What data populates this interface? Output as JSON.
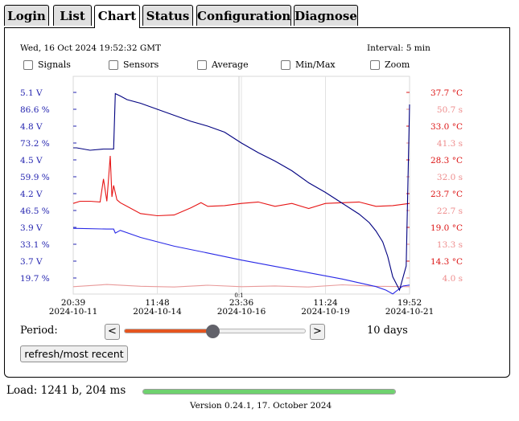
{
  "tabs": [
    {
      "label": "Login",
      "active": false
    },
    {
      "label": "List",
      "active": false
    },
    {
      "label": "Chart",
      "active": true
    },
    {
      "label": "Status",
      "active": false
    },
    {
      "label": "Configuration",
      "active": false
    },
    {
      "label": "Diagnose",
      "active": false
    }
  ],
  "header": {
    "datetime": "Wed, 16 Oct 2024 19:52:32 GMT",
    "interval": "Interval: 5 min"
  },
  "options": [
    {
      "label": "Signals",
      "checked": false
    },
    {
      "label": "Sensors",
      "checked": false
    },
    {
      "label": "Average",
      "checked": false
    },
    {
      "label": "Min/Max",
      "checked": false
    },
    {
      "label": "Zoom",
      "checked": false
    }
  ],
  "chart_data": {
    "type": "line",
    "left_axis_labels": [
      "5.1 V",
      "86.6 %",
      "4.8 V",
      "73.2 %",
      "4.5 V",
      "59.9 %",
      "4.2 V",
      "46.5 %",
      "3.9 V",
      "33.1 %",
      "3.7 V",
      "19.7 %"
    ],
    "right_axis_labels_a": [
      "37.7 °C",
      "33.0 °C",
      "28.3 °C",
      "23.7 °C",
      "19.0 °C",
      "14.3 °C"
    ],
    "right_axis_labels_b": [
      "50.7 s",
      "41.3 s",
      "32.0 s",
      "22.7 s",
      "13.3 s",
      "4.0 s"
    ],
    "x_ticks": [
      {
        "time": "20:39",
        "date": "2024-10-11"
      },
      {
        "time": "11:48",
        "date": "2024-10-14"
      },
      {
        "time": "23:36",
        "date": "2024-10-16"
      },
      {
        "time": "11:24",
        "date": "2024-10-19"
      },
      {
        "time": "19:52",
        "date": "2024-10-21"
      }
    ],
    "marker_label": "0:1",
    "colors": {
      "voltage": "#000080",
      "percent": "#2828e6",
      "temperature": "#e61414",
      "seconds": "#e89a9a"
    },
    "series": [
      {
        "values_note": "Battery voltage (dark blue), read in V on the left scale",
        "key": "voltage",
        "t": [
          0,
          0.01,
          0.05,
          0.09,
          0.12,
          0.125,
          0.14,
          0.16,
          0.2,
          0.25,
          0.3,
          0.35,
          0.4,
          0.45,
          0.5,
          0.55,
          0.6,
          0.65,
          0.7,
          0.75,
          0.8,
          0.85,
          0.88,
          0.9,
          0.92,
          0.935,
          0.95,
          0.97,
          0.99,
          1.0
        ],
        "v": [
          4.64,
          4.64,
          4.62,
          4.63,
          4.63,
          5.09,
          5.07,
          5.04,
          5.01,
          4.96,
          4.91,
          4.86,
          4.82,
          4.77,
          4.68,
          4.6,
          4.53,
          4.45,
          4.35,
          4.27,
          4.18,
          4.09,
          4.02,
          3.95,
          3.86,
          3.74,
          3.57,
          3.46,
          3.66,
          5.0
        ]
      },
      {
        "key": "percent",
        "t": [
          0,
          0.1,
          0.12,
          0.125,
          0.14,
          0.2,
          0.3,
          0.4,
          0.5,
          0.6,
          0.7,
          0.8,
          0.9,
          0.93,
          0.95,
          0.98,
          1.0
        ],
        "v": [
          39.4,
          39.1,
          39.1,
          37.5,
          38.6,
          35.8,
          32.3,
          29.6,
          26.8,
          24.3,
          21.8,
          19.3,
          16.3,
          14.9,
          13.4,
          16.5,
          16.9
        ]
      },
      {
        "key": "temperature",
        "t": [
          0,
          0.02,
          0.05,
          0.08,
          0.09,
          0.1,
          0.11,
          0.115,
          0.12,
          0.13,
          0.14,
          0.2,
          0.25,
          0.3,
          0.35,
          0.38,
          0.4,
          0.45,
          0.5,
          0.55,
          0.6,
          0.65,
          0.7,
          0.75,
          0.8,
          0.85,
          0.9,
          0.95,
          1.0
        ],
        "v": [
          22.3,
          22.6,
          22.6,
          22.5,
          25.7,
          22.6,
          28.9,
          23.2,
          24.8,
          22.8,
          22.4,
          20.9,
          20.6,
          20.7,
          21.7,
          22.4,
          21.9,
          22.0,
          22.3,
          22.5,
          21.9,
          22.3,
          21.6,
          22.3,
          22.4,
          22.5,
          21.9,
          22.0,
          22.3
        ]
      },
      {
        "key": "seconds",
        "t": [
          0,
          0.1,
          0.2,
          0.3,
          0.4,
          0.5,
          0.6,
          0.7,
          0.8,
          0.9,
          1.0
        ],
        "v": [
          1.6,
          2.2,
          1.7,
          1.5,
          2.0,
          1.6,
          1.8,
          1.5,
          2.1,
          1.7,
          1.6
        ]
      }
    ]
  },
  "period": {
    "label": "Period:",
    "prev_label": "<",
    "next_label": ">",
    "value_label": "10 days",
    "slider_fraction": 0.49
  },
  "refresh_label": "refresh/most recent",
  "footer": {
    "load_label": "Load: 1241 b, 204 ms",
    "load_fraction": 1.0,
    "version": "Version 0.24.1, 17. October 2024"
  }
}
